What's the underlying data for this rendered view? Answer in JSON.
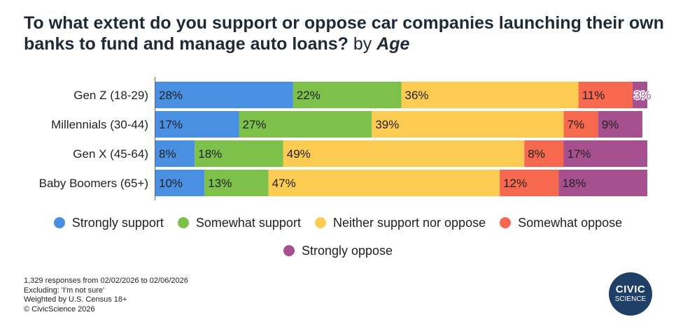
{
  "title": {
    "main": "To what extent do you support or oppose car companies launching their own banks to fund and manage auto loans?",
    "by": " by ",
    "dimension": "Age"
  },
  "colors": {
    "strongly_support": "#4a90e2",
    "somewhat_support": "#7dc14b",
    "neither": "#fccb52",
    "somewhat_oppose": "#f7694f",
    "strongly_oppose": "#a6508f"
  },
  "chart_data": {
    "type": "bar",
    "orientation": "horizontal",
    "stacked": true,
    "categories": [
      "Gen Z (18-29)",
      "Millennials (30-44)",
      "Gen X (45-64)",
      "Baby Boomers (65+)"
    ],
    "series": [
      {
        "name": "Strongly support",
        "values": [
          28,
          17,
          8,
          10
        ],
        "labels": [
          "28%",
          "17%",
          "8%",
          "10%"
        ]
      },
      {
        "name": "Somewhat support",
        "values": [
          22,
          27,
          18,
          13
        ],
        "labels": [
          "22%",
          "27%",
          "18%",
          "13%"
        ]
      },
      {
        "name": "Neither support nor oppose",
        "values": [
          36,
          39,
          49,
          47
        ],
        "labels": [
          "36%",
          "39%",
          "49%",
          "47%"
        ]
      },
      {
        "name": "Somewhat oppose",
        "values": [
          11,
          7,
          8,
          12
        ],
        "labels": [
          "11%",
          "7%",
          "8%",
          "12%"
        ]
      },
      {
        "name": "Strongly oppose",
        "values": [
          3,
          9,
          17,
          18
        ],
        "labels": [
          "3%",
          "9%",
          "17%",
          "18%"
        ]
      }
    ],
    "xlim": [
      0,
      100
    ],
    "legend_position": "bottom"
  },
  "footer": {
    "responses": "1,329 responses from 02/02/2026 to 02/06/2026",
    "excluding": "Excluding: 'I'm not sure'",
    "weighted": "Weighted by U.S. Census 18+",
    "copyright": "© CivicScience 2026"
  },
  "logo": {
    "line1": "CIVIC",
    "line2": "SCIENCE"
  }
}
